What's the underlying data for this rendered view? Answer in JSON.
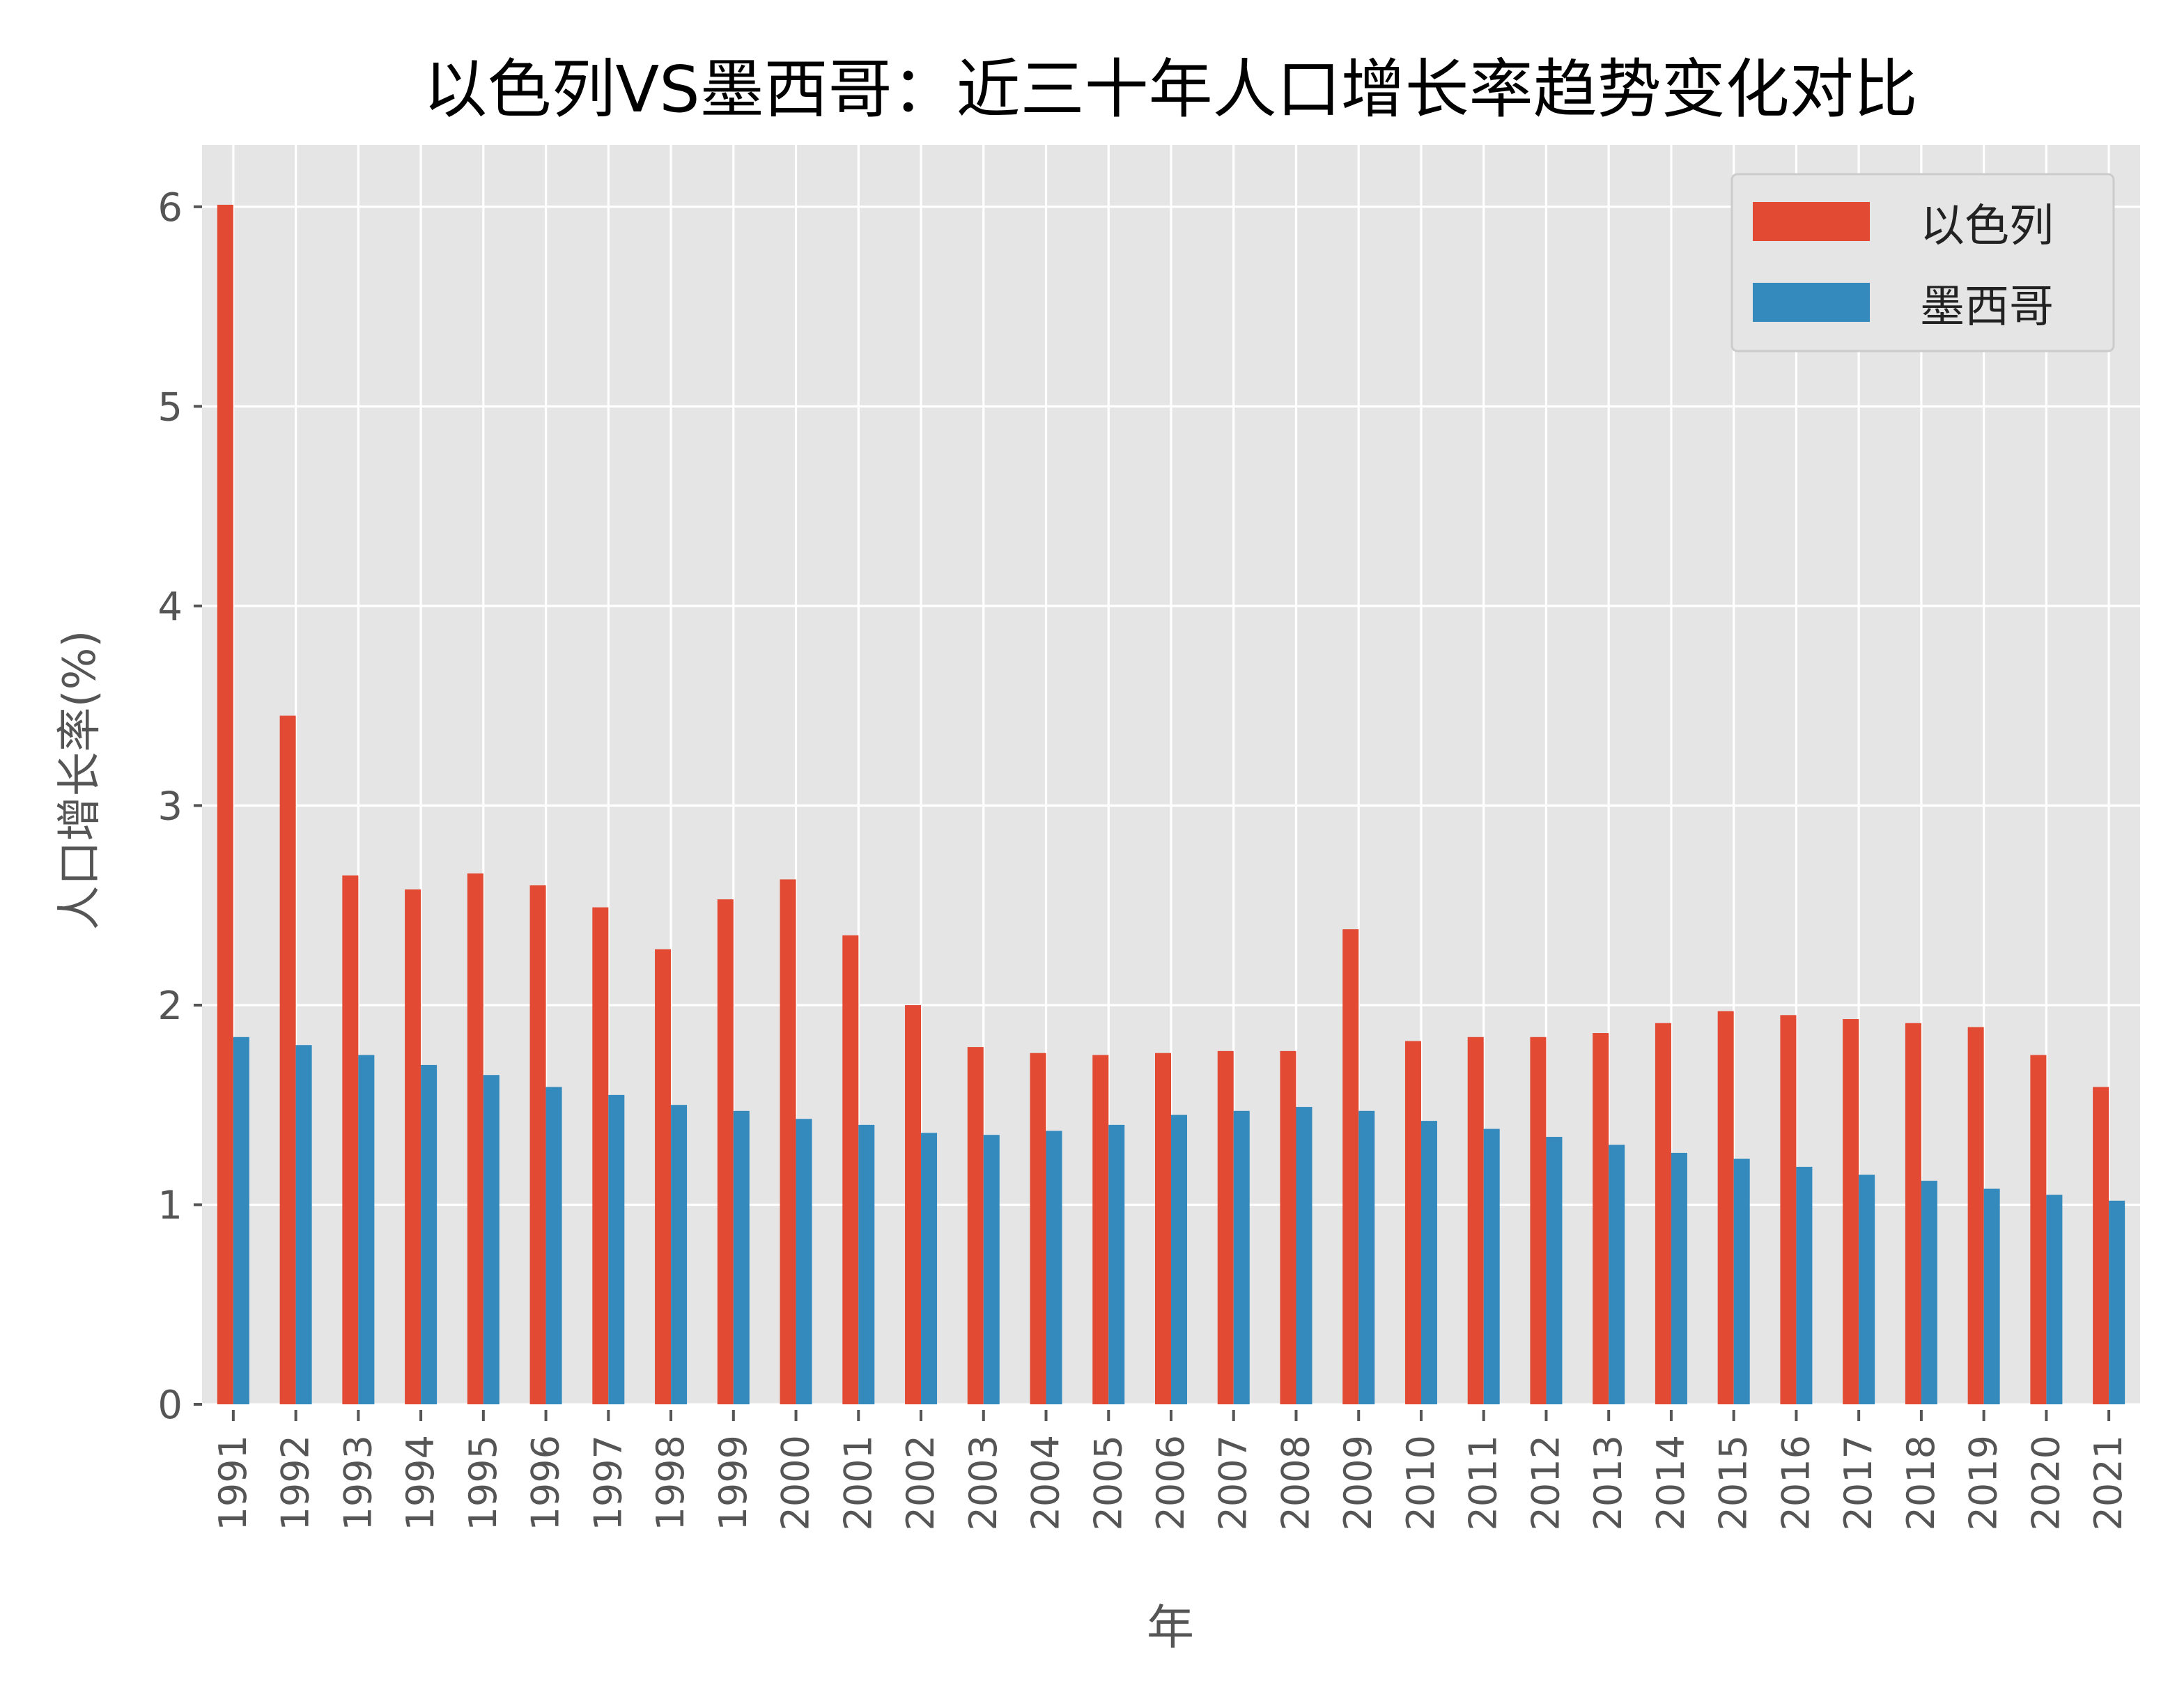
{
  "chart_data": {
    "type": "bar",
    "title": "以色列VS墨西哥：近三十年人口增长率趋势变化对比",
    "xlabel": "年",
    "ylabel": "人口增长率(%)",
    "ylim": [
      0,
      6.31
    ],
    "yticks": [
      0,
      1,
      2,
      3,
      4,
      5,
      6
    ],
    "grid": true,
    "legend_position": "top-right",
    "categories": [
      "1991",
      "1992",
      "1993",
      "1994",
      "1995",
      "1996",
      "1997",
      "1998",
      "1999",
      "2000",
      "2001",
      "2002",
      "2003",
      "2004",
      "2005",
      "2006",
      "2007",
      "2008",
      "2009",
      "2010",
      "2011",
      "2012",
      "2013",
      "2014",
      "2015",
      "2016",
      "2017",
      "2018",
      "2019",
      "2020",
      "2021"
    ],
    "series": [
      {
        "name": "以色列",
        "color": "#E24A33",
        "values": [
          6.01,
          3.45,
          2.65,
          2.58,
          2.66,
          2.6,
          2.49,
          2.28,
          2.53,
          2.63,
          2.35,
          2.0,
          1.79,
          1.76,
          1.75,
          1.76,
          1.77,
          1.77,
          2.38,
          1.82,
          1.84,
          1.84,
          1.86,
          1.91,
          1.97,
          1.95,
          1.93,
          1.91,
          1.89,
          1.75,
          1.59
        ]
      },
      {
        "name": "墨西哥",
        "color": "#348ABD",
        "values": [
          1.84,
          1.8,
          1.75,
          1.7,
          1.65,
          1.59,
          1.55,
          1.5,
          1.47,
          1.43,
          1.4,
          1.36,
          1.35,
          1.37,
          1.4,
          1.45,
          1.47,
          1.49,
          1.47,
          1.42,
          1.38,
          1.34,
          1.3,
          1.26,
          1.23,
          1.19,
          1.15,
          1.12,
          1.08,
          1.05,
          1.02
        ]
      }
    ]
  }
}
